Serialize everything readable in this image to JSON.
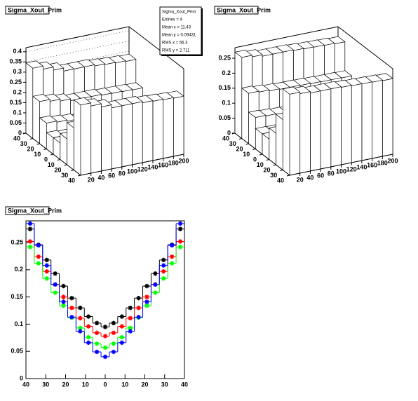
{
  "chart_data": [
    {
      "type": "lego",
      "title": "Sigma_Xout_Prim",
      "stats": [
        "Sigma_Xout_Prim",
        "Entries = 4",
        "Mean x = 11.43",
        "Mean y = 0.09431",
        "RMS x = 56.3",
        "RMS y = 2.711"
      ],
      "xlim": [
        -40,
        40
      ],
      "ylim": [
        0,
        200
      ],
      "zlim": [
        0,
        0.42
      ],
      "xticks": [
        {
          "value": -40,
          "label": "40"
        },
        {
          "value": -30,
          "label": "30"
        },
        {
          "value": -20,
          "label": "20"
        },
        {
          "value": -10,
          "label": "10"
        },
        0,
        10,
        20,
        30,
        40
      ],
      "yticks": [
        20,
        40,
        60,
        80,
        100,
        120,
        140,
        160,
        180,
        200
      ],
      "zticks": [
        0,
        0.05,
        0.1,
        0.15,
        0.2,
        0.25,
        0.3,
        0.35,
        0.4
      ],
      "values": [
        [
          0.345,
          0.33,
          0.315,
          0.3,
          0.3,
          0.3,
          0.294,
          0.291,
          0.288,
          0.285
        ],
        [
          0.207,
          0.198,
          0.189,
          0.18,
          0.18,
          0.18,
          0.176,
          0.175,
          0.173,
          0.171
        ],
        [
          0.127,
          0.121,
          0.116,
          0.11,
          0.11,
          0.11,
          0.108,
          0.107,
          0.106,
          0.105
        ],
        [
          0.081,
          0.077,
          0.074,
          0.07,
          0.07,
          0.07,
          0.069,
          0.068,
          0.067,
          0.067
        ],
        [
          0.081,
          0.077,
          0.074,
          0.07,
          0.07,
          0.07,
          0.069,
          0.068,
          0.067,
          0.067
        ],
        [
          0.127,
          0.121,
          0.116,
          0.11,
          0.11,
          0.11,
          0.108,
          0.107,
          0.106,
          0.105
        ],
        [
          0.207,
          0.198,
          0.189,
          0.18,
          0.18,
          0.18,
          0.176,
          0.175,
          0.173,
          0.171
        ],
        [
          0.345,
          0.33,
          0.315,
          0.3,
          0.3,
          0.3,
          0.294,
          0.291,
          0.288,
          0.285
        ]
      ]
    },
    {
      "type": "lego",
      "title": "Sigma_Xout_Prim",
      "xlim": [
        -40,
        40
      ],
      "ylim": [
        0,
        200
      ],
      "zlim": [
        0,
        0.285
      ],
      "xticks": [
        {
          "value": -40,
          "label": "40"
        },
        {
          "value": -30,
          "label": "30"
        },
        {
          "value": -20,
          "label": "20"
        },
        {
          "value": -10,
          "label": "10"
        },
        0,
        10,
        20,
        30,
        40
      ],
      "yticks": [
        20,
        40,
        60,
        80,
        100,
        120,
        140,
        160,
        180,
        200
      ],
      "zticks": [
        0,
        0.05,
        0.1,
        0.15,
        0.2,
        0.25
      ],
      "values": [
        [
          0.27,
          0.265,
          0.26,
          0.26,
          0.26,
          0.258,
          0.256,
          0.255,
          0.254,
          0.252
        ],
        [
          0.168,
          0.165,
          0.162,
          0.16,
          0.16,
          0.159,
          0.158,
          0.157,
          0.157,
          0.156
        ],
        [
          0.105,
          0.103,
          0.101,
          0.1,
          0.1,
          0.099,
          0.099,
          0.098,
          0.098,
          0.097
        ],
        [
          0.068,
          0.067,
          0.066,
          0.065,
          0.065,
          0.065,
          0.064,
          0.064,
          0.064,
          0.063
        ],
        [
          0.068,
          0.067,
          0.066,
          0.065,
          0.065,
          0.065,
          0.064,
          0.064,
          0.064,
          0.063
        ],
        [
          0.105,
          0.103,
          0.101,
          0.1,
          0.1,
          0.099,
          0.099,
          0.098,
          0.098,
          0.097
        ],
        [
          0.168,
          0.165,
          0.162,
          0.16,
          0.16,
          0.159,
          0.158,
          0.157,
          0.157,
          0.156
        ],
        [
          0.27,
          0.265,
          0.26,
          0.26,
          0.26,
          0.258,
          0.256,
          0.255,
          0.254,
          0.252
        ]
      ]
    },
    {
      "type": "step",
      "title": "Sigma_Xout_Prim",
      "xlim": [
        -40,
        40
      ],
      "ylim": [
        0,
        0.29
      ],
      "xticks": [
        {
          "value": -40,
          "label": "40"
        },
        {
          "value": -30,
          "label": "30"
        },
        {
          "value": -20,
          "label": "20"
        },
        {
          "value": -10,
          "label": "10"
        },
        0,
        10,
        20,
        30,
        40
      ],
      "yticks": [
        0,
        0.05,
        0.1,
        0.15,
        0.2,
        0.25
      ],
      "series": [
        {
          "color": "#000000",
          "values": [
            0.275,
            0.246,
            0.218,
            0.193,
            0.17,
            0.148,
            0.13,
            0.114,
            0.102,
            0.095,
            0.102,
            0.114,
            0.13,
            0.148,
            0.17,
            0.193,
            0.218,
            0.246,
            0.275
          ]
        },
        {
          "color": "#ff0000",
          "values": [
            0.252,
            0.224,
            0.197,
            0.173,
            0.15,
            0.13,
            0.111,
            0.096,
            0.084,
            0.078,
            0.084,
            0.096,
            0.111,
            0.13,
            0.15,
            0.173,
            0.197,
            0.224,
            0.252
          ]
        },
        {
          "color": "#00ff00",
          "values": [
            0.242,
            0.212,
            0.184,
            0.158,
            0.134,
            0.112,
            0.093,
            0.076,
            0.064,
            0.057,
            0.064,
            0.076,
            0.093,
            0.112,
            0.134,
            0.158,
            0.184,
            0.212,
            0.242
          ]
        },
        {
          "color": "#0000ff",
          "values": [
            0.285,
            0.245,
            0.208,
            0.173,
            0.141,
            0.113,
            0.087,
            0.066,
            0.049,
            0.04,
            0.049,
            0.066,
            0.087,
            0.113,
            0.141,
            0.173,
            0.208,
            0.245,
            0.285
          ]
        }
      ]
    }
  ]
}
